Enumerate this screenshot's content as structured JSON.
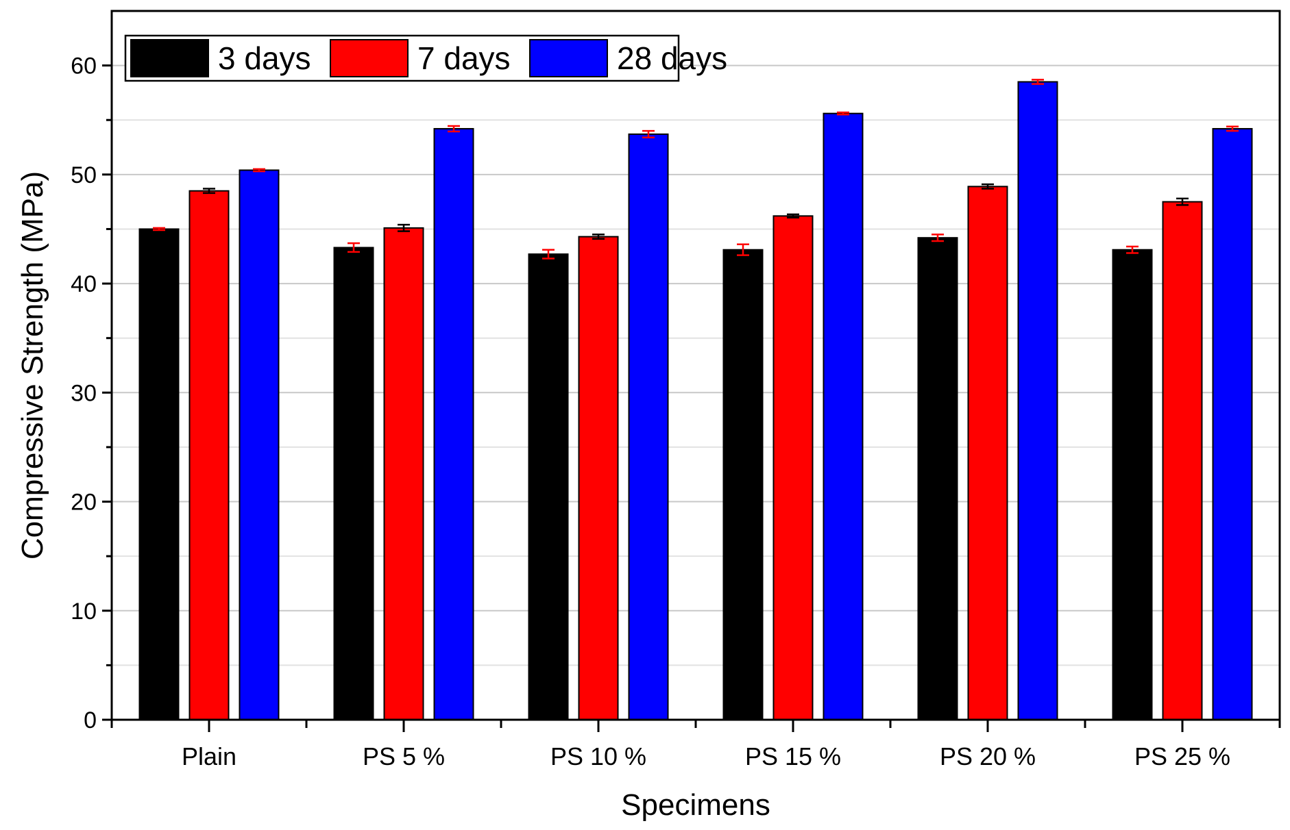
{
  "chart_data": {
    "type": "bar",
    "title": "",
    "xlabel": "Specimens",
    "ylabel": "Compressive Strength (MPa)",
    "ylim": [
      0,
      65
    ],
    "yticks": [
      0,
      10,
      20,
      30,
      40,
      50,
      60
    ],
    "yticks_labels": [
      "0",
      "10",
      "20",
      "30",
      "40",
      "50",
      "60"
    ],
    "grid": true,
    "legend_position": "top-left",
    "categories": [
      "Plain",
      "PS 5 %",
      "PS 10 %",
      "PS 15 %",
      "PS 20 %",
      "PS 25 %"
    ],
    "series": [
      {
        "name": "3 days",
        "color": "#000000",
        "errorbar_color": "#ff0000",
        "values": [
          45.0,
          43.3,
          42.7,
          43.1,
          44.2,
          43.1
        ],
        "errors": [
          0.1,
          0.4,
          0.4,
          0.5,
          0.3,
          0.3
        ]
      },
      {
        "name": "7 days",
        "color": "#ff0000",
        "errorbar_color": "#000000",
        "values": [
          48.5,
          45.1,
          44.3,
          46.2,
          48.9,
          47.5
        ],
        "errors": [
          0.2,
          0.3,
          0.2,
          0.15,
          0.2,
          0.3
        ]
      },
      {
        "name": "28 days",
        "color": "#0000ff",
        "errorbar_color": "#ff0000",
        "values": [
          50.4,
          54.2,
          53.7,
          55.6,
          58.5,
          54.2
        ],
        "errors": [
          0.1,
          0.25,
          0.3,
          0.1,
          0.2,
          0.2
        ]
      }
    ]
  }
}
